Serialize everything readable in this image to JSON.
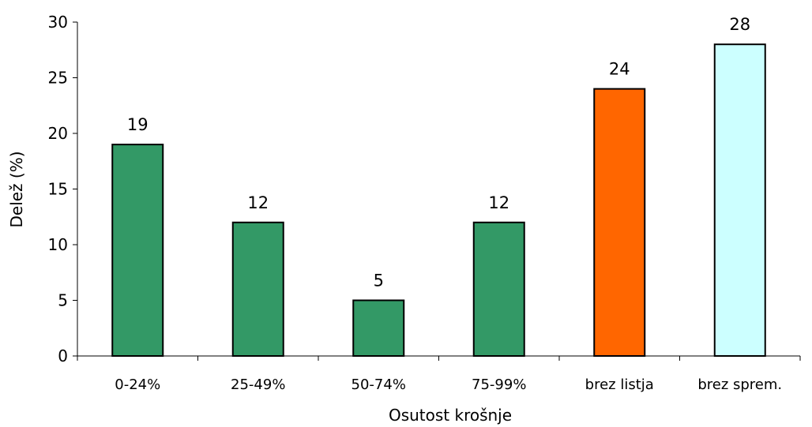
{
  "chart_data": {
    "type": "bar",
    "categories": [
      "0-24%",
      "25-49%",
      "50-74%",
      "75-99%",
      "brez listja",
      "brez sprem."
    ],
    "values": [
      19,
      12,
      5,
      12,
      24,
      28
    ],
    "bar_colors": [
      "#339966",
      "#339966",
      "#339966",
      "#339966",
      "#FF6600",
      "#CCFFFF"
    ],
    "xlabel": "Osutost krošnje",
    "ylabel": "Delež (%)",
    "ylim": [
      0,
      30
    ],
    "yticks": [
      0,
      5,
      10,
      15,
      20,
      25,
      30
    ],
    "grid": false,
    "legend": "none"
  }
}
